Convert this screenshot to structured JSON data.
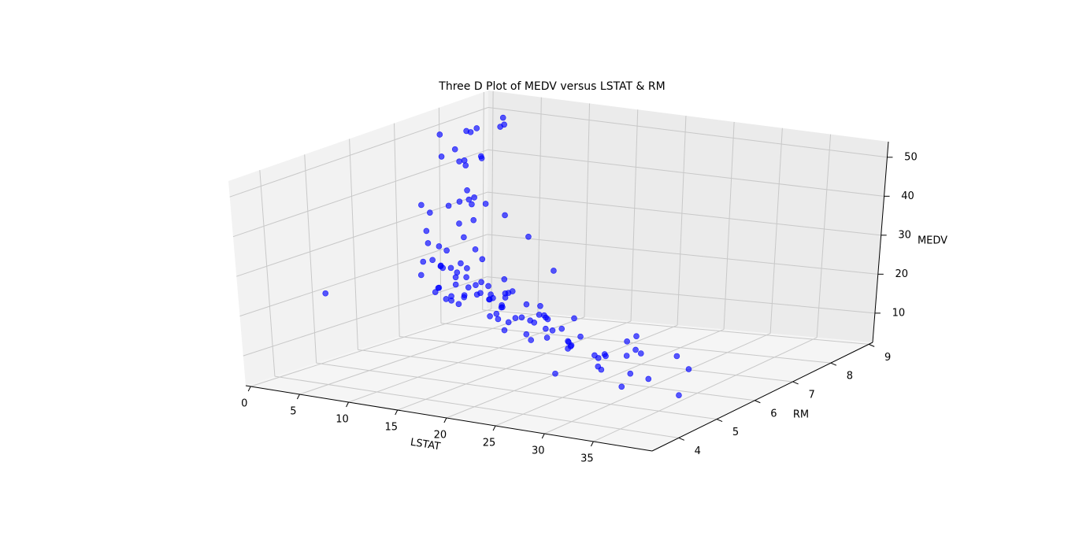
{
  "chart_data": {
    "type": "scatter3d",
    "title": "Three D Plot of MEDV versus LSTAT & RM",
    "xlabel": "LSTAT",
    "ylabel": "RM",
    "zlabel": "MEDV",
    "color": "#0000ff",
    "grid": true,
    "xlim": [
      -0.5,
      41
    ],
    "ylim": [
      3.3,
      9.1
    ],
    "zlim": [
      2.5,
      54
    ],
    "xticks": [
      0,
      5,
      10,
      15,
      20,
      25,
      30,
      35
    ],
    "yticks": [
      4,
      5,
      6,
      7,
      8,
      9
    ],
    "zticks": [
      10,
      20,
      30,
      40,
      50
    ],
    "x": [
      4.98,
      9.14,
      4.03,
      2.94,
      5.33,
      5.21,
      12.43,
      19.15,
      29.93,
      17.1,
      20.45,
      13.27,
      15.71,
      8.26,
      10.26,
      8.47,
      6.58,
      14.67,
      11.69,
      11.28,
      21.02,
      13.83,
      18.72,
      19.88,
      16.3,
      16.51,
      14.81,
      17.28,
      12.8,
      11.98,
      22.6,
      13.04,
      27.71,
      18.35,
      20.34,
      9.68,
      11.41,
      8.77,
      10.13,
      4.32,
      1.98,
      4.84,
      5.81,
      7.44,
      9.55,
      10.21,
      14.15,
      18.8,
      30.81,
      16.2,
      1.73,
      4.45,
      2.88,
      5.29,
      3.16,
      3.53,
      2.96,
      4.63,
      1.92,
      3.54,
      2.97,
      4.7,
      5.5,
      3.01,
      3.16,
      2.87,
      4.14,
      6.36,
      5.39,
      4.81,
      7.79,
      9.59,
      7.01,
      6.72,
      9.5,
      8.1,
      7.12,
      36.98,
      37.97,
      34.77,
      30.62,
      29.53,
      31.99,
      34.37,
      26.82,
      23.34,
      25.68,
      24.39,
      21.52,
      28.32,
      23.98,
      26.64,
      20.62,
      23.27,
      17.6,
      15.02,
      15.55,
      18.06,
      12.34,
      14.59,
      11.34,
      7.56,
      8.43,
      6.15,
      5.98,
      6.86,
      10.59,
      12.67,
      15.79,
      13.35,
      9.04,
      7.14,
      19.37,
      21.45,
      16.94,
      25.79,
      27.38,
      18.46,
      14.19,
      11.72,
      17.16,
      22.11
    ],
    "y": [
      6.58,
      6.42,
      7.19,
      7.0,
      7.15,
      6.43,
      6.01,
      6.17,
      5.63,
      6.0,
      6.38,
      6.01,
      5.89,
      5.95,
      6.1,
      5.83,
      5.94,
      5.99,
      5.46,
      5.73,
      5.57,
      5.96,
      6.14,
      5.81,
      5.92,
      5.6,
      5.81,
      6.05,
      6.5,
      6.67,
      5.71,
      6.07,
      5.95,
      5.7,
      6.1,
      5.93,
      5.84,
      5.85,
      5.97,
      6.6,
      7.02,
      6.77,
      6.17,
      6.21,
      6.07,
      5.68,
      5.79,
      6.03,
      5.4,
      5.6,
      7.52,
      8.38,
      8.7,
      8.78,
      8.04,
      7.82,
      7.85,
      8.25,
      7.82,
      8.07,
      7.8,
      7.47,
      7.33,
      7.27,
      7.64,
      7.85,
      7.92,
      7.24,
      7.42,
      7.61,
      7.2,
      7.24,
      6.86,
      6.82,
      6.72,
      6.88,
      3.56,
      5.0,
      4.97,
      5.47,
      5.33,
      5.39,
      5.46,
      4.63,
      5.35,
      5.53,
      5.89,
      4.96,
      5.99,
      5.8,
      6.15,
      5.68,
      6.28,
      5.86,
      6.22,
      5.8,
      5.93,
      6.25,
      6.2,
      6.08,
      6.13,
      6.42,
      6.33,
      6.65,
      6.54,
      6.39,
      6.13,
      5.93,
      5.71,
      6.02,
      6.46,
      6.75,
      5.57,
      5.6,
      6.23,
      5.7,
      5.39,
      5.99,
      6.35,
      6.07,
      5.87,
      5.9
    ],
    "z": [
      24.0,
      21.6,
      34.7,
      33.4,
      36.2,
      28.7,
      22.9,
      27.1,
      16.5,
      18.9,
      15.0,
      18.9,
      21.7,
      20.4,
      18.2,
      19.9,
      23.1,
      17.5,
      20.2,
      18.2,
      13.6,
      19.6,
      15.2,
      14.5,
      15.6,
      13.9,
      16.6,
      14.8,
      18.4,
      21.0,
      12.7,
      14.5,
      13.2,
      13.1,
      13.5,
      18.9,
      20.0,
      21.0,
      24.7,
      30.8,
      34.9,
      26.6,
      25.3,
      24.7,
      21.2,
      19.3,
      20.0,
      16.6,
      14.4,
      19.4,
      50.0,
      50.0,
      50.0,
      21.9,
      50.0,
      50.0,
      50.0,
      50.0,
      45.4,
      42.8,
      43.1,
      37.6,
      36.1,
      46.0,
      43.5,
      41.7,
      44.0,
      31.7,
      34.6,
      35.4,
      36.2,
      33.8,
      29.1,
      32.5,
      25.0,
      26.4,
      27.5,
      7.0,
      13.8,
      13.8,
      8.8,
      5.0,
      7.4,
      17.9,
      12.0,
      11.8,
      9.7,
      8.3,
      11.0,
      10.5,
      7.2,
      10.4,
      8.8,
      13.4,
      17.8,
      15.4,
      14.3,
      15.0,
      21.2,
      19.5,
      21.4,
      23.4,
      21.7,
      26.4,
      22.9,
      23.3,
      20.6,
      20.6,
      19.4,
      20.1,
      23.6,
      23.2,
      12.5,
      15.4,
      13.5,
      7.5,
      8.5,
      16.8,
      19.9,
      19.4,
      16.2,
      10.5
    ]
  }
}
